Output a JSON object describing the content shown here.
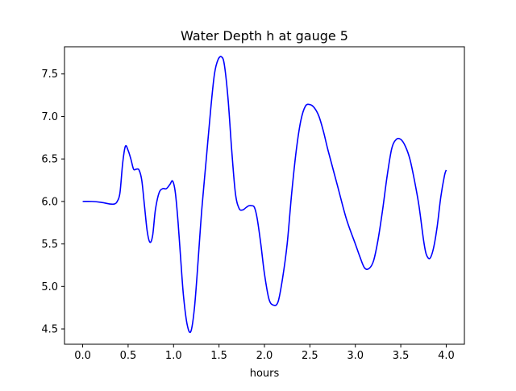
{
  "chart_data": {
    "type": "line",
    "title": "Water Depth h at gauge 5",
    "xlabel": "hours",
    "ylabel": "",
    "xlim": [
      -0.2,
      4.2
    ],
    "ylim": [
      4.32,
      7.82
    ],
    "xticks": [
      0.0,
      0.5,
      1.0,
      1.5,
      2.0,
      2.5,
      3.0,
      3.5,
      4.0
    ],
    "xtick_labels": [
      "0.0",
      "0.5",
      "1.0",
      "1.5",
      "2.0",
      "2.5",
      "3.0",
      "3.5",
      "4.0"
    ],
    "yticks": [
      4.5,
      5.0,
      5.5,
      6.0,
      6.5,
      7.0,
      7.5
    ],
    "ytick_labels": [
      "4.5",
      "5.0",
      "5.5",
      "6.0",
      "6.5",
      "7.0",
      "7.5"
    ],
    "grid": false,
    "series": [
      {
        "color": "#0000ff",
        "x": [
          0.0,
          0.1,
          0.2,
          0.3,
          0.35,
          0.38,
          0.41,
          0.44,
          0.47,
          0.5,
          0.53,
          0.56,
          0.59,
          0.62,
          0.65,
          0.68,
          0.71,
          0.74,
          0.77,
          0.8,
          0.84,
          0.88,
          0.92,
          0.96,
          0.99,
          1.02,
          1.05,
          1.08,
          1.11,
          1.15,
          1.19,
          1.23,
          1.27,
          1.31,
          1.36,
          1.41,
          1.45,
          1.49,
          1.53,
          1.56,
          1.6,
          1.64,
          1.68,
          1.72,
          1.76,
          1.8,
          1.83,
          1.86,
          1.89,
          1.92,
          1.96,
          2.0,
          2.05,
          2.1,
          2.15,
          2.2,
          2.25,
          2.3,
          2.35,
          2.4,
          2.45,
          2.5,
          2.55,
          2.6,
          2.65,
          2.7,
          2.8,
          2.9,
          3.0,
          3.05,
          3.1,
          3.15,
          3.2,
          3.25,
          3.3,
          3.35,
          3.4,
          3.45,
          3.5,
          3.55,
          3.6,
          3.65,
          3.7,
          3.75,
          3.78,
          3.82,
          3.86,
          3.9,
          3.94,
          3.98,
          4.0
        ],
        "y": [
          6.0,
          6.0,
          5.99,
          5.97,
          5.97,
          6.0,
          6.1,
          6.45,
          6.65,
          6.6,
          6.5,
          6.38,
          6.38,
          6.37,
          6.25,
          5.95,
          5.65,
          5.52,
          5.6,
          5.9,
          6.1,
          6.15,
          6.15,
          6.2,
          6.24,
          6.1,
          5.75,
          5.3,
          4.88,
          4.55,
          4.47,
          4.75,
          5.3,
          5.9,
          6.5,
          7.1,
          7.5,
          7.67,
          7.7,
          7.6,
          7.2,
          6.6,
          6.1,
          5.92,
          5.9,
          5.93,
          5.95,
          5.95,
          5.93,
          5.8,
          5.5,
          5.15,
          4.85,
          4.78,
          4.82,
          5.1,
          5.5,
          6.1,
          6.6,
          6.95,
          7.12,
          7.14,
          7.1,
          7.0,
          6.82,
          6.6,
          6.2,
          5.8,
          5.5,
          5.35,
          5.22,
          5.21,
          5.3,
          5.55,
          5.9,
          6.3,
          6.62,
          6.73,
          6.73,
          6.65,
          6.5,
          6.25,
          5.95,
          5.55,
          5.38,
          5.33,
          5.45,
          5.7,
          6.05,
          6.3,
          6.37
        ]
      }
    ]
  }
}
